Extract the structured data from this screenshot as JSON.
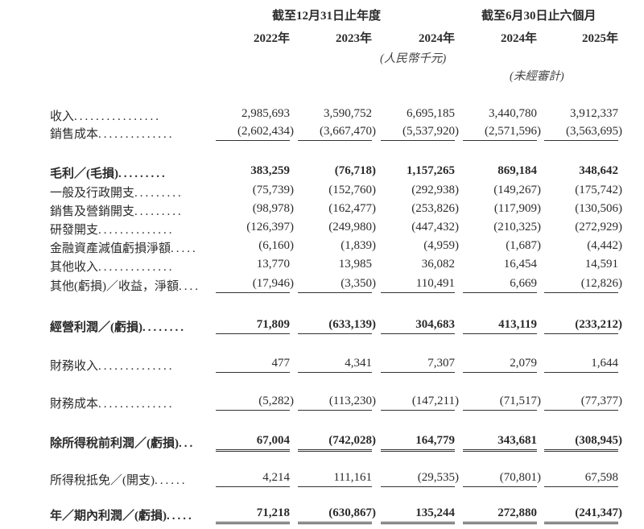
{
  "header": {
    "group_annual": "截至12月31日止年度",
    "group_interim": "截至6月30日止六個月",
    "years": [
      "2022年",
      "2023年",
      "2024年",
      "2024年",
      "2025年"
    ],
    "currency_note": "(人民幣千元)",
    "unaudited_note": "(未經審計)"
  },
  "rows": [
    {
      "label": "收入",
      "dots": "................",
      "bold": false,
      "values": [
        "2,985,693",
        "3,590,752",
        "6,695,185",
        "3,440,780",
        "3,912,337"
      ],
      "underline": "none"
    },
    {
      "label": "銷售成本",
      "dots": "..............",
      "bold": false,
      "values": [
        "(2,602,434)",
        "(3,667,470)",
        "(5,537,920)",
        "(2,571,596)",
        "(3,563,695)"
      ],
      "underline": "single"
    },
    {
      "label": "毛利／(毛損)",
      "dots": ".........",
      "bold": true,
      "values": [
        "383,259",
        "(76,718)",
        "1,157,265",
        "869,184",
        "348,642"
      ],
      "underline": "none"
    },
    {
      "label": "一般及行政開支",
      "dots": ".........",
      "bold": false,
      "values": [
        "(75,739)",
        "(152,760)",
        "(292,938)",
        "(149,267)",
        "(175,742)"
      ],
      "underline": "none"
    },
    {
      "label": "銷售及營銷開支",
      "dots": ".........",
      "bold": false,
      "values": [
        "(98,978)",
        "(162,477)",
        "(253,826)",
        "(117,909)",
        "(130,506)"
      ],
      "underline": "none"
    },
    {
      "label": "研發開支",
      "dots": "..............",
      "bold": false,
      "values": [
        "(126,397)",
        "(249,980)",
        "(447,432)",
        "(210,325)",
        "(272,929)"
      ],
      "underline": "none"
    },
    {
      "label": "金融資產減值虧損淨額",
      "dots": ".....",
      "bold": false,
      "values": [
        "(6,160)",
        "(1,839)",
        "(4,959)",
        "(1,687)",
        "(4,442)"
      ],
      "underline": "none"
    },
    {
      "label": "其他收入",
      "dots": "..............",
      "bold": false,
      "values": [
        "13,770",
        "13,985",
        "36,082",
        "16,454",
        "14,591"
      ],
      "underline": "none"
    },
    {
      "label": "其他(虧損)／收益，淨額",
      "dots": "....",
      "bold": false,
      "values": [
        "(17,946)",
        "(3,350)",
        "110,491",
        "6,669",
        "(12,826)"
      ],
      "underline": "single"
    },
    {
      "label": "經營利潤／(虧損)",
      "dots": "........",
      "bold": true,
      "values": [
        "71,809",
        "(633,139)",
        "304,683",
        "413,119",
        "(233,212)"
      ],
      "underline": "single"
    },
    {
      "label": "財務收入",
      "dots": "..............",
      "bold": false,
      "values": [
        "477",
        "4,341",
        "7,307",
        "2,079",
        "1,644"
      ],
      "underline": "single"
    },
    {
      "label": "財務成本",
      "dots": "..............",
      "bold": false,
      "values": [
        "(5,282)",
        "(113,230)",
        "(147,211)",
        "(71,517)",
        "(77,377)"
      ],
      "underline": "single"
    },
    {
      "label": "除所得稅前利潤／(虧損)",
      "dots": "...",
      "bold": true,
      "values": [
        "67,004",
        "(742,028)",
        "164,779",
        "343,681",
        "(308,945)"
      ],
      "underline": "double"
    },
    {
      "label": "所得稅抵免／(開支)",
      "dots": "......",
      "bold": false,
      "values": [
        "4,214",
        "111,161",
        "(29,535)",
        "(70,801)",
        "67,598"
      ],
      "underline": "single"
    },
    {
      "label": "年／期內利潤／(虧損)",
      "dots": ".....",
      "bold": true,
      "values": [
        "71,218",
        "(630,867)",
        "135,244",
        "272,880",
        "(241,347)"
      ],
      "underline": "double"
    }
  ]
}
